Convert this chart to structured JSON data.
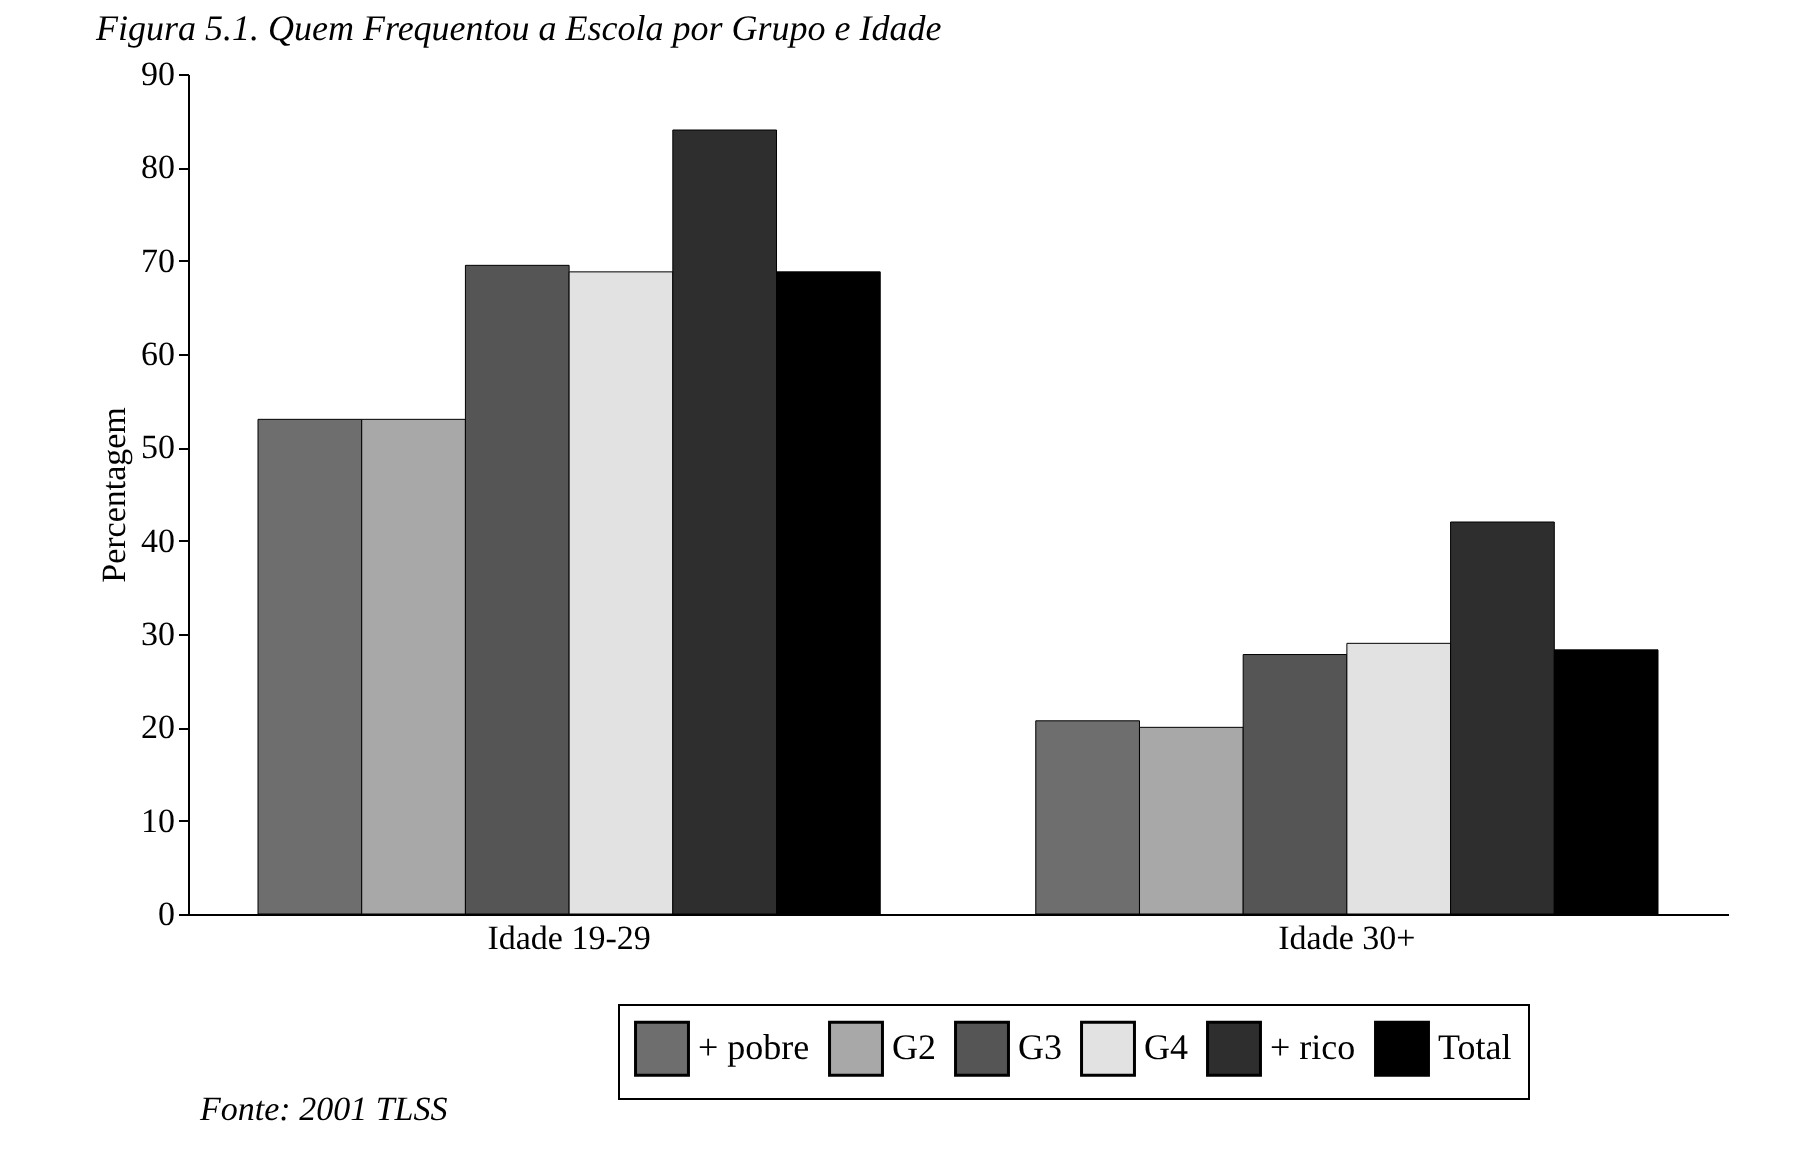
{
  "chart_data": {
    "type": "bar",
    "title": "Figura 5.1. Quem Frequentou a Escola por Grupo e Idade",
    "ylabel": "Percentagem",
    "categories": [
      "Idade 19-29",
      "Idade 30+"
    ],
    "series": [
      {
        "name": "+ pobre",
        "color": "#6e6e6e",
        "values": [
          53,
          20.7
        ]
      },
      {
        "name": "G2",
        "color": "#a8a8a8",
        "values": [
          53,
          20
        ]
      },
      {
        "name": "G3",
        "color": "#555555",
        "values": [
          69.5,
          27.8
        ]
      },
      {
        "name": "G4",
        "color": "#e2e2e2",
        "values": [
          68.8,
          29
        ]
      },
      {
        "name": "+ rico",
        "color": "#2e2e2e",
        "values": [
          84,
          42
        ]
      },
      {
        "name": "Total",
        "color": "#000000",
        "values": [
          68.8,
          28.3
        ]
      }
    ],
    "ylim": [
      0,
      90
    ],
    "yticks": [
      0,
      10,
      20,
      30,
      40,
      50,
      60,
      70,
      80,
      90
    ],
    "legend": "bottom",
    "grid": false,
    "annotations": [
      "Fonte: 2001 TLSS"
    ]
  }
}
